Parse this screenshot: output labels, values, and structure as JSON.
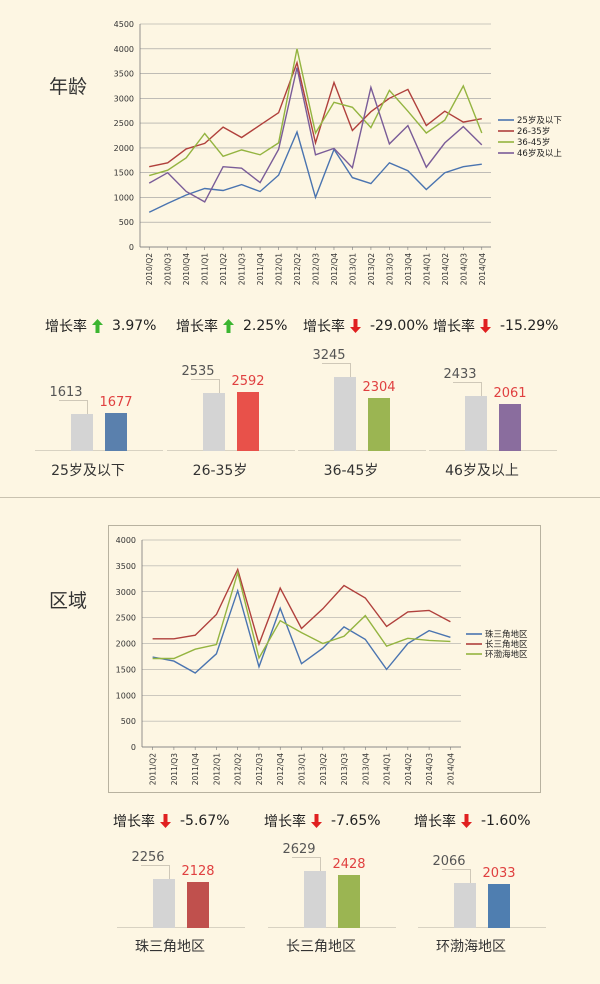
{
  "sections": {
    "age": {
      "title": "年龄"
    },
    "region": {
      "title": "区域"
    }
  },
  "colors": {
    "up": "#3cb531",
    "down": "#e02020",
    "grey_bar": "#d4d4d4",
    "red_value": "#e04040"
  },
  "chart_data": [
    {
      "type": "line",
      "x": [
        "2010/Q2",
        "2010/Q3",
        "2010/Q4",
        "2011/Q1",
        "2011/Q2",
        "2011/Q3",
        "2011/Q4",
        "2012/Q1",
        "2012/Q2",
        "2012/Q3",
        "2012/Q4",
        "2013/Q1",
        "2013/Q2",
        "2013/Q3",
        "2013/Q4",
        "2014/Q1",
        "2014/Q2",
        "2014/Q3",
        "2014/Q4"
      ],
      "ylim": [
        0,
        4500
      ],
      "yticks": [
        "0",
        "500",
        "1000",
        "1500",
        "2000",
        "2500",
        "3000",
        "3500",
        "4000",
        "4500"
      ],
      "legend_position": "right",
      "series": [
        {
          "name": "25岁及以下",
          "color": "#4a74b0",
          "values": [
            700,
            880,
            1050,
            1180,
            1140,
            1260,
            1120,
            1450,
            2320,
            1000,
            1970,
            1400,
            1280,
            1700,
            1540,
            1160,
            1500,
            1620,
            1670
          ]
        },
        {
          "name": "26-35岁",
          "color": "#b0403c",
          "values": [
            1620,
            1700,
            1980,
            2090,
            2420,
            2210,
            2460,
            2710,
            3720,
            2100,
            3320,
            2350,
            2730,
            3000,
            3180,
            2450,
            2740,
            2520,
            2590
          ]
        },
        {
          "name": "36-45岁",
          "color": "#94b440",
          "values": [
            1440,
            1550,
            1800,
            2290,
            1830,
            1960,
            1860,
            2100,
            4000,
            2300,
            2920,
            2820,
            2410,
            3160,
            2740,
            2300,
            2560,
            3250,
            2300
          ]
        },
        {
          "name": "46岁及以上",
          "color": "#7a5c98",
          "values": [
            1290,
            1500,
            1120,
            910,
            1620,
            1590,
            1300,
            1970,
            3620,
            1860,
            1990,
            1600,
            3220,
            2080,
            2450,
            1610,
            2100,
            2430,
            2060
          ]
        }
      ]
    },
    {
      "type": "line",
      "x": [
        "2011/Q2",
        "2011/Q3",
        "2011/Q4",
        "2012/Q1",
        "2012/Q2",
        "2012/Q3",
        "2012/Q4",
        "2013/Q1",
        "2013/Q2",
        "2013/Q3",
        "2013/Q4",
        "2014/Q1",
        "2014/Q2",
        "2014/Q3",
        "2014/Q4"
      ],
      "ylim": [
        0,
        4000
      ],
      "yticks": [
        "0",
        "500",
        "1000",
        "1500",
        "2000",
        "2500",
        "3000",
        "3500",
        "4000"
      ],
      "legend_position": "right",
      "series": [
        {
          "name": "珠三角地区",
          "color": "#4a74b0",
          "values": [
            1740,
            1660,
            1430,
            1800,
            3020,
            1550,
            2680,
            1610,
            1910,
            2320,
            2080,
            1500,
            2000,
            2250,
            2120
          ]
        },
        {
          "name": "长三角地区",
          "color": "#b0403c",
          "values": [
            2090,
            2090,
            2160,
            2560,
            3430,
            1990,
            3070,
            2290,
            2670,
            3120,
            2880,
            2330,
            2610,
            2640,
            2420
          ]
        },
        {
          "name": "环渤海地区",
          "color": "#94b440",
          "values": [
            1710,
            1710,
            1890,
            1980,
            3370,
            1720,
            2440,
            2210,
            2000,
            2140,
            2540,
            1950,
            2100,
            2060,
            2040
          ]
        }
      ]
    },
    {
      "type": "bar",
      "group": "age",
      "items": [
        {
          "rate_label": "增长率",
          "direction": "up",
          "rate": "3.97%",
          "prev": 1613,
          "prev_label": "1613",
          "cur": 1677,
          "cur_label": "1677",
          "cur_color": "#5a80ad",
          "cur_text_color": "#e04040",
          "category": "25岁及以下"
        },
        {
          "rate_label": "增长率",
          "direction": "up",
          "rate": "2.25%",
          "prev": 2535,
          "prev_label": "2535",
          "cur": 2592,
          "cur_label": "2592",
          "cur_color": "#e8514a",
          "cur_text_color": "#e04040",
          "category": "26-35岁"
        },
        {
          "rate_label": "增长率",
          "direction": "down",
          "rate": "-29.00%",
          "prev": 3245,
          "prev_label": "3245",
          "cur": 2304,
          "cur_label": "2304",
          "cur_color": "#9bb552",
          "cur_text_color": "#e04040",
          "category": "36-45岁"
        },
        {
          "rate_label": "增长率",
          "direction": "down",
          "rate": "-15.29%",
          "prev": 2433,
          "prev_label": "2433",
          "cur": 2061,
          "cur_label": "2061",
          "cur_color": "#8a6d9e",
          "cur_text_color": "#e04040",
          "category": "46岁及以上"
        }
      ]
    },
    {
      "type": "bar",
      "group": "region",
      "items": [
        {
          "rate_label": "增长率",
          "direction": "down",
          "rate": "-5.67%",
          "prev": 2256,
          "prev_label": "2256",
          "cur": 2128,
          "cur_label": "2128",
          "cur_color": "#c0504d",
          "cur_text_color": "#e04040",
          "category": "珠三角地区"
        },
        {
          "rate_label": "增长率",
          "direction": "down",
          "rate": "-7.65%",
          "prev": 2629,
          "prev_label": "2629",
          "cur": 2428,
          "cur_label": "2428",
          "cur_color": "#9bb552",
          "cur_text_color": "#e04040",
          "category": "长三角地区"
        },
        {
          "rate_label": "增长率",
          "direction": "down",
          "rate": "-1.60%",
          "prev": 2066,
          "prev_label": "2066",
          "cur": 2033,
          "cur_label": "2033",
          "cur_color": "#4f7eb0",
          "cur_text_color": "#e04040",
          "category": "环渤海地区"
        }
      ]
    }
  ]
}
